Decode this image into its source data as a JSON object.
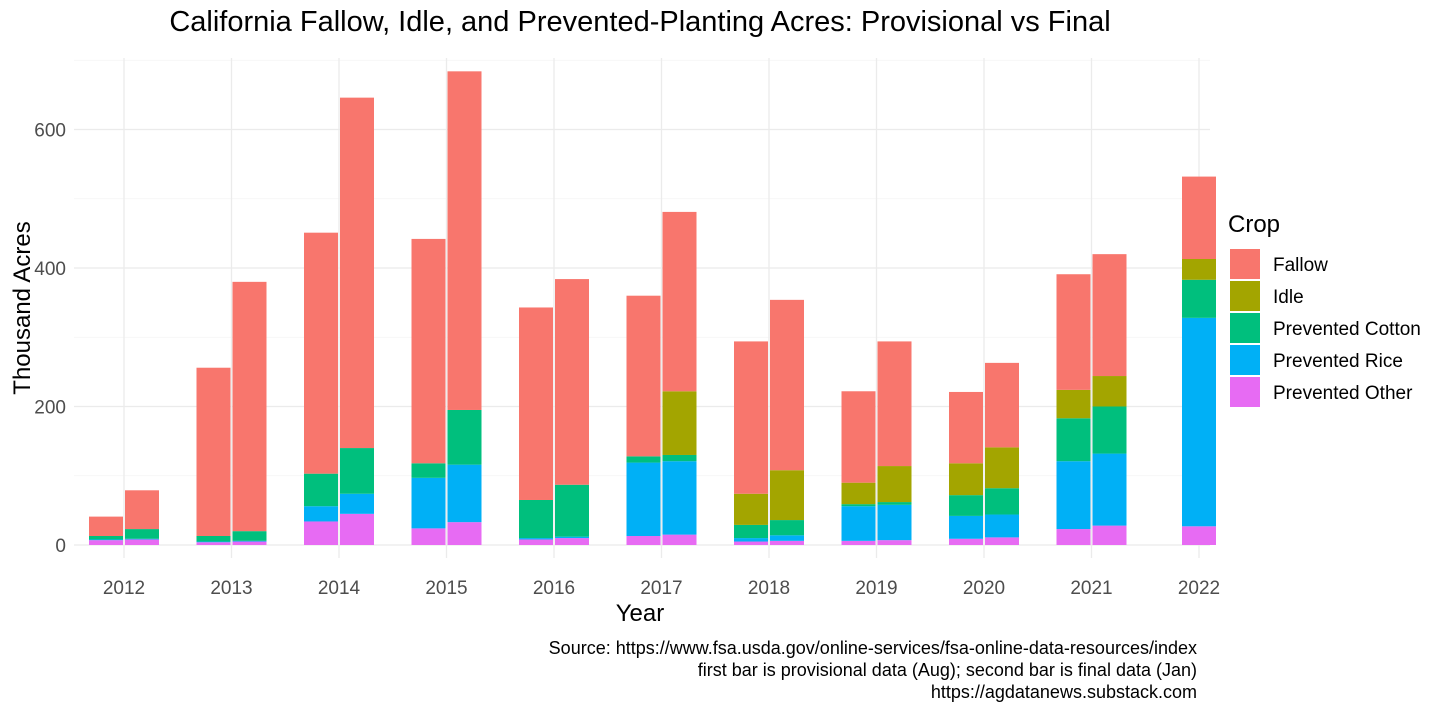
{
  "chart_data": {
    "type": "bar",
    "stacked": true,
    "title": "California Fallow, Idle, and Prevented-Planting Acres: Provisional vs Final",
    "xlabel": "Year",
    "ylabel": "Thousand Acres",
    "ylim": [
      0,
      715
    ],
    "yticks": [
      0,
      200,
      400,
      600
    ],
    "grid": true,
    "legend": {
      "title": "Crop",
      "position": "right",
      "entries": [
        "Fallow",
        "Idle",
        "Prevented Cotton",
        "Prevented Rice",
        "Prevented Other"
      ]
    },
    "colors": {
      "Fallow": "#F8766D",
      "Idle": "#A3A500",
      "Prevented Cotton": "#00BF7D",
      "Prevented Rice": "#00B0F6",
      "Prevented Other": "#E76BF3"
    },
    "stack_order_bottom_to_top": [
      "Prevented Other",
      "Prevented Rice",
      "Prevented Cotton",
      "Idle",
      "Fallow"
    ],
    "categories": [
      "2012",
      "2013",
      "2014",
      "2015",
      "2016",
      "2017",
      "2018",
      "2019",
      "2020",
      "2021",
      "2022"
    ],
    "bars": [
      {
        "year": "2012",
        "kind": "provisional",
        "Prevented Other": 7,
        "Prevented Rice": 1,
        "Prevented Cotton": 5,
        "Idle": 0,
        "Fallow": 28
      },
      {
        "year": "2012",
        "kind": "final",
        "Prevented Other": 8,
        "Prevented Rice": 1,
        "Prevented Cotton": 14,
        "Idle": 0,
        "Fallow": 56
      },
      {
        "year": "2013",
        "kind": "provisional",
        "Prevented Other": 4,
        "Prevented Rice": 1,
        "Prevented Cotton": 8,
        "Idle": 0,
        "Fallow": 243
      },
      {
        "year": "2013",
        "kind": "final",
        "Prevented Other": 5,
        "Prevented Rice": 1,
        "Prevented Cotton": 14,
        "Idle": 0,
        "Fallow": 360
      },
      {
        "year": "2014",
        "kind": "provisional",
        "Prevented Other": 34,
        "Prevented Rice": 22,
        "Prevented Cotton": 47,
        "Idle": 0,
        "Fallow": 348
      },
      {
        "year": "2014",
        "kind": "final",
        "Prevented Other": 45,
        "Prevented Rice": 29,
        "Prevented Cotton": 66,
        "Idle": 0,
        "Fallow": 506
      },
      {
        "year": "2015",
        "kind": "provisional",
        "Prevented Other": 24,
        "Prevented Rice": 73,
        "Prevented Cotton": 21,
        "Idle": 0,
        "Fallow": 324
      },
      {
        "year": "2015",
        "kind": "final",
        "Prevented Other": 33,
        "Prevented Rice": 83,
        "Prevented Cotton": 79,
        "Idle": 0,
        "Fallow": 489
      },
      {
        "year": "2016",
        "kind": "provisional",
        "Prevented Other": 8,
        "Prevented Rice": 2,
        "Prevented Cotton": 55,
        "Idle": 0,
        "Fallow": 278
      },
      {
        "year": "2016",
        "kind": "final",
        "Prevented Other": 10,
        "Prevented Rice": 2,
        "Prevented Cotton": 75,
        "Idle": 0,
        "Fallow": 297
      },
      {
        "year": "2017",
        "kind": "provisional",
        "Prevented Other": 13,
        "Prevented Rice": 106,
        "Prevented Cotton": 9,
        "Idle": 0,
        "Fallow": 232
      },
      {
        "year": "2017",
        "kind": "final",
        "Prevented Other": 15,
        "Prevented Rice": 106,
        "Prevented Cotton": 9,
        "Idle": 92,
        "Fallow": 259
      },
      {
        "year": "2018",
        "kind": "provisional",
        "Prevented Other": 5,
        "Prevented Rice": 5,
        "Prevented Cotton": 19,
        "Idle": 45,
        "Fallow": 220
      },
      {
        "year": "2018",
        "kind": "final",
        "Prevented Other": 6,
        "Prevented Rice": 8,
        "Prevented Cotton": 22,
        "Idle": 72,
        "Fallow": 246
      },
      {
        "year": "2019",
        "kind": "provisional",
        "Prevented Other": 6,
        "Prevented Rice": 50,
        "Prevented Cotton": 3,
        "Idle": 31,
        "Fallow": 132
      },
      {
        "year": "2019",
        "kind": "final",
        "Prevented Other": 7,
        "Prevented Rice": 51,
        "Prevented Cotton": 4,
        "Idle": 52,
        "Fallow": 180
      },
      {
        "year": "2020",
        "kind": "provisional",
        "Prevented Other": 9,
        "Prevented Rice": 33,
        "Prevented Cotton": 30,
        "Idle": 46,
        "Fallow": 103
      },
      {
        "year": "2020",
        "kind": "final",
        "Prevented Other": 11,
        "Prevented Rice": 33,
        "Prevented Cotton": 38,
        "Idle": 59,
        "Fallow": 122
      },
      {
        "year": "2021",
        "kind": "provisional",
        "Prevented Other": 23,
        "Prevented Rice": 98,
        "Prevented Cotton": 62,
        "Idle": 41,
        "Fallow": 167
      },
      {
        "year": "2021",
        "kind": "final",
        "Prevented Other": 28,
        "Prevented Rice": 104,
        "Prevented Cotton": 68,
        "Idle": 44,
        "Fallow": 176
      },
      {
        "year": "2022",
        "kind": "provisional",
        "Prevented Other": 27,
        "Prevented Rice": 301,
        "Prevented Cotton": 55,
        "Idle": 30,
        "Fallow": 119
      }
    ],
    "caption": [
      "Source: https://www.fsa.usda.gov/online-services/fsa-online-data-resources/index",
      "first bar is provisional data (Aug); second bar is final data (Jan)",
      "https://agdatanews.substack.com"
    ]
  }
}
